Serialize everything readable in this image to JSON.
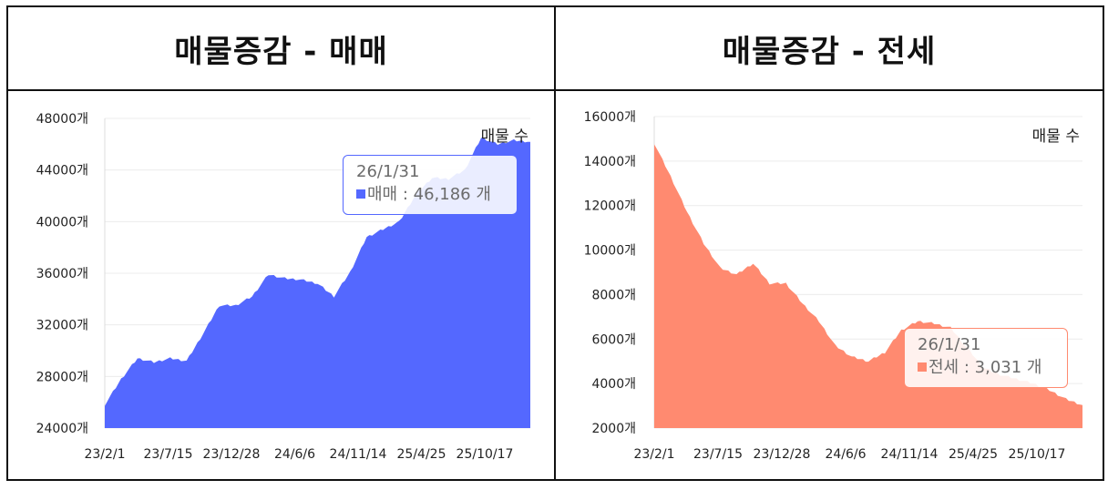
{
  "panels": [
    {
      "title": "매물증감 - 매매"
    },
    {
      "title": "매물증감 - 전세"
    }
  ],
  "chart_data": [
    {
      "type": "area",
      "title": "매물증감 - 매매",
      "series_label": "매물 수",
      "color": "#5468ff",
      "y_ticks": [
        "48000개",
        "44000개",
        "40000개",
        "36000개",
        "32000개",
        "28000개",
        "24000개"
      ],
      "ylim": [
        24000,
        48000
      ],
      "x_ticks": [
        "23/2/1",
        "23/7/15",
        "23/12/28",
        "24/6/6",
        "24/11/14",
        "25/4/25",
        "25/10/17"
      ],
      "x": [
        "23/2/1",
        "23/3/15",
        "23/5/1",
        "23/6/15",
        "23/7/15",
        "23/9/1",
        "23/10/15",
        "23/12/1",
        "23/12/28",
        "24/2/15",
        "24/4/1",
        "24/5/15",
        "24/6/6",
        "24/7/15",
        "24/9/1",
        "24/10/15",
        "24/11/14",
        "24/12/15",
        "25/2/1",
        "25/3/15",
        "25/4/25",
        "25/6/15",
        "25/8/1",
        "25/9/15",
        "25/10/17",
        "25/12/15",
        "26/1/31"
      ],
      "values": [
        25800,
        27800,
        29400,
        29100,
        29400,
        29200,
        31300,
        33500,
        33500,
        34200,
        35900,
        35600,
        35500,
        35200,
        34200,
        36100,
        38800,
        39400,
        40000,
        42100,
        43400,
        43300,
        44000,
        46500,
        46000,
        46300,
        46186
      ],
      "grid": true,
      "tooltip": {
        "date": "26/1/31",
        "label": "매매",
        "value_text": "46,186 개"
      }
    },
    {
      "type": "area",
      "title": "매물증감 - 전세",
      "series_label": "매물 수",
      "color": "#ff8a70",
      "y_ticks": [
        "16000개",
        "14000개",
        "12000개",
        "10000개",
        "8000개",
        "6000개",
        "4000개",
        "2000개"
      ],
      "ylim": [
        2000,
        16000
      ],
      "x_ticks": [
        "23/2/1",
        "23/7/15",
        "23/12/28",
        "24/6/6",
        "24/11/14",
        "25/4/25",
        "25/10/17"
      ],
      "x": [
        "23/2/1",
        "23/3/15",
        "23/5/1",
        "23/6/15",
        "23/7/15",
        "23/9/1",
        "23/10/15",
        "23/12/1",
        "23/12/28",
        "24/2/15",
        "24/4/1",
        "24/5/15",
        "24/6/6",
        "24/7/15",
        "24/9/1",
        "24/10/15",
        "24/11/14",
        "24/12/15",
        "25/2/1",
        "25/3/15",
        "25/4/25",
        "25/6/15",
        "25/8/1",
        "25/9/15",
        "25/10/17",
        "25/12/15",
        "26/1/31"
      ],
      "values": [
        14800,
        13300,
        11700,
        10300,
        9200,
        8900,
        9400,
        8500,
        8500,
        7600,
        6800,
        5700,
        5200,
        5000,
        5400,
        6400,
        6800,
        6700,
        6500,
        5600,
        4700,
        4400,
        4200,
        4000,
        3700,
        3300,
        3031
      ],
      "grid": true,
      "tooltip": {
        "date": "26/1/31",
        "label": "전세",
        "value_text": "3,031 개"
      }
    }
  ]
}
